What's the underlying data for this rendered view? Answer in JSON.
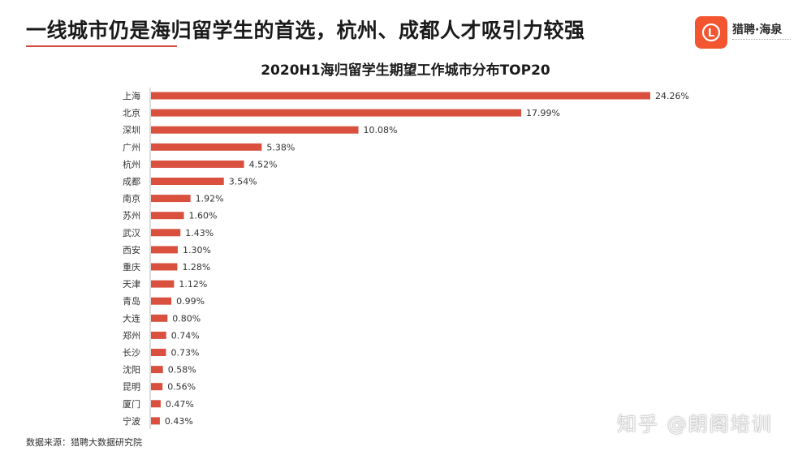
{
  "header": {
    "headline": "一线城市仍是海归留学生的首选，杭州、成都人才吸引力较强",
    "logo_text": "猎聘·海泉",
    "logo_glyph": "L"
  },
  "footer": {
    "source": "数据来源：猎聘大数据研究院",
    "watermark": "知乎 @朗阁培训"
  },
  "colors": {
    "bar": "#d9503f",
    "accent": "#d24a3a",
    "logo": "#f2552f"
  },
  "chart_data": {
    "type": "bar",
    "orientation": "horizontal",
    "title": "2020H1海归留学生期望工作城市分布TOP20",
    "categories": [
      "上海",
      "北京",
      "深圳",
      "广州",
      "杭州",
      "成都",
      "南京",
      "苏州",
      "武汉",
      "西安",
      "重庆",
      "天津",
      "青岛",
      "大连",
      "郑州",
      "长沙",
      "沈阳",
      "昆明",
      "厦门",
      "宁波"
    ],
    "values": [
      24.26,
      17.99,
      10.08,
      5.38,
      4.52,
      3.54,
      1.92,
      1.6,
      1.43,
      1.3,
      1.28,
      1.12,
      0.99,
      0.8,
      0.74,
      0.73,
      0.58,
      0.56,
      0.47,
      0.43
    ],
    "labels": [
      "24.26%",
      "17.99%",
      "10.08%",
      "5.38%",
      "4.52%",
      "3.54%",
      "1.92%",
      "1.60%",
      "1.43%",
      "1.30%",
      "1.28%",
      "1.12%",
      "0.99%",
      "0.80%",
      "0.74%",
      "0.73%",
      "0.58%",
      "0.56%",
      "0.47%",
      "0.43%"
    ],
    "xlim": [
      0,
      24.26
    ],
    "grid": false,
    "legend": "none"
  }
}
